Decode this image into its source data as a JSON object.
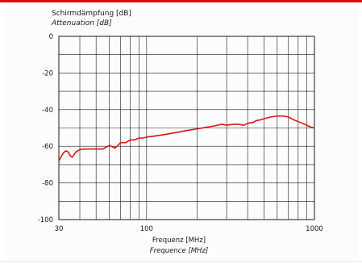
{
  "chart_data": {
    "type": "line",
    "ylabel": "Schirmdämpfung [dB]",
    "ylabel_en": "Attenuation [dB]",
    "xlabel": "Frequenz [MHz]",
    "xlabel_en": "Frequence [MHz]",
    "x_scale": "log",
    "xlim": [
      30,
      1000
    ],
    "ylim": [
      -100,
      0
    ],
    "x_ticks": [
      30,
      100,
      1000
    ],
    "y_ticks": [
      0,
      -20,
      -40,
      -60,
      -80,
      -100
    ],
    "grid": true,
    "line_color": "#d7141a",
    "series": [
      {
        "x": [
          30,
          31,
          32,
          33,
          34,
          35,
          36,
          37,
          38,
          40,
          42,
          45,
          50,
          55,
          60,
          65,
          70,
          75,
          80,
          85,
          90,
          95,
          100,
          110,
          120,
          130,
          150,
          170,
          200,
          230,
          250,
          280,
          300,
          330,
          350,
          380,
          400,
          430,
          450,
          480,
          500,
          550,
          600,
          650,
          700,
          750,
          800,
          850,
          900,
          950,
          1000
        ],
        "y": [
          -68,
          -65.5,
          -63.5,
          -62.5,
          -63,
          -65,
          -66,
          -64.5,
          -63,
          -61.8,
          -61.5,
          -61.5,
          -61.5,
          -61.5,
          -59.5,
          -61,
          -58,
          -58,
          -56.5,
          -56.5,
          -55.5,
          -55.5,
          -55,
          -54.5,
          -54,
          -53.5,
          -52.5,
          -51.5,
          -50.5,
          -49.5,
          -49,
          -48,
          -48.5,
          -48,
          -48,
          -48.5,
          -47.5,
          -47,
          -46,
          -45.5,
          -45,
          -44,
          -43.5,
          -43.5,
          -44,
          -45.5,
          -46.5,
          -47.5,
          -48.5,
          -49.5,
          -50
        ]
      }
    ]
  }
}
